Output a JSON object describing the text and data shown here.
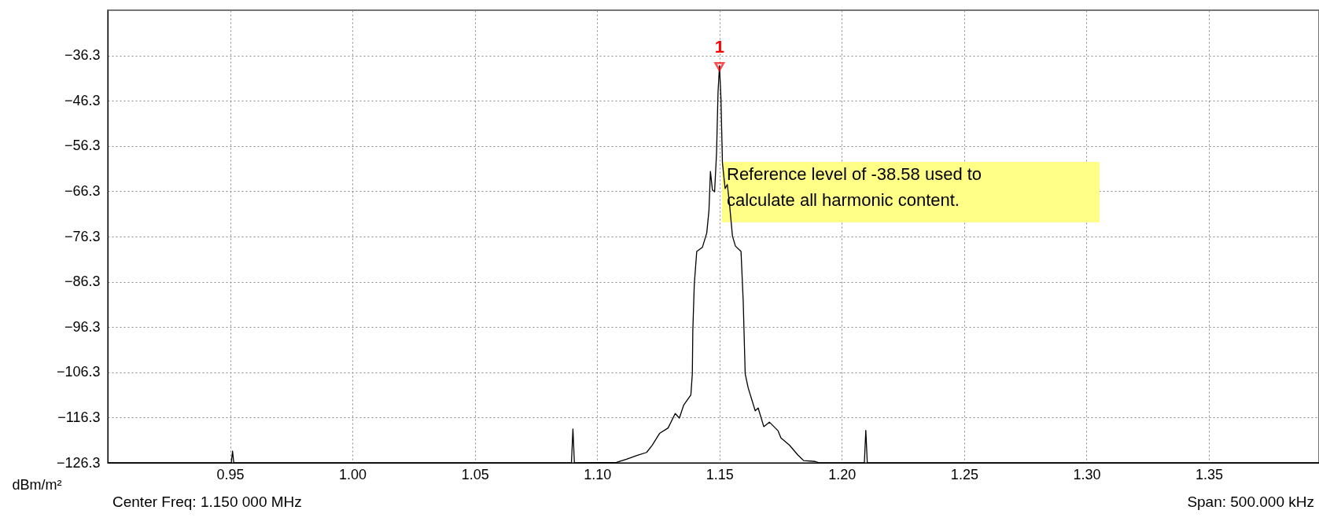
{
  "chart_data": {
    "type": "line",
    "ylabel": "dBm/m²",
    "xlim": [
      0.9,
      1.395
    ],
    "ylim": [
      -126.3,
      -26.3
    ],
    "xticks": [
      0.95,
      {
        "value": 1.0,
        "label": "1.00"
      },
      1.05,
      {
        "value": 1.1,
        "label": "1.10"
      },
      1.15,
      {
        "value": 1.2,
        "label": "1.20"
      },
      1.25,
      {
        "value": 1.3,
        "label": "1.30"
      },
      1.35
    ],
    "yticks": [
      -126.3,
      -116.3,
      -106.3,
      -96.3,
      -86.3,
      -76.3,
      -66.3,
      -56.3,
      -46.3,
      -36.3
    ],
    "grid": true,
    "series": [
      {
        "color": "#000000",
        "x": [
          0.9,
          0.9505,
          0.951,
          0.9515,
          1.0895,
          1.0901,
          1.0907,
          1.1079,
          1.112,
          1.1167,
          1.1202,
          1.1225,
          1.1255,
          1.129,
          1.1319,
          1.1336,
          1.1354,
          1.1383,
          1.1389,
          1.1391,
          1.1397,
          1.1407,
          1.143,
          1.1448,
          1.1457,
          1.1463,
          1.1471,
          1.148,
          1.1488,
          1.1494,
          1.15,
          1.1506,
          1.1512,
          1.1523,
          1.1532,
          1.1541,
          1.1553,
          1.1565,
          1.1588,
          1.1597,
          1.1605,
          1.1617,
          1.1646,
          1.1658,
          1.1681,
          1.1704,
          1.1739,
          1.1751,
          1.1786,
          1.1821,
          1.1844,
          1.1891,
          1.1909,
          1.2092,
          1.2098,
          1.2104,
          1.395
        ],
        "values": [
          -126.3,
          -126.3,
          -123.7,
          -126.3,
          -126.3,
          -118.8,
          -126.3,
          -126.2,
          -125.5,
          -124.6,
          -124.0,
          -122.4,
          -119.8,
          -118.6,
          -115.4,
          -116.4,
          -113.5,
          -111.3,
          -106.6,
          -97.1,
          -86.9,
          -79.6,
          -78.7,
          -75.5,
          -70.5,
          -61.9,
          -66.0,
          -66.4,
          -57.8,
          -44.5,
          -38.58,
          -45.8,
          -60.0,
          -65.7,
          -64.8,
          -69.2,
          -76.2,
          -78.4,
          -79.6,
          -90.7,
          -106.6,
          -109.7,
          -114.8,
          -114.2,
          -118.3,
          -117.3,
          -119.2,
          -120.8,
          -122.4,
          -124.6,
          -125.8,
          -126.0,
          -126.3,
          -126.3,
          -119.1,
          -126.3,
          -126.3
        ]
      }
    ],
    "annotations": [
      {
        "text": "1",
        "x": 1.15,
        "y": -38.58
      },
      "Reference level of -38.58 used to calculate all harmonic content.",
      "Center Freq: 1.150 000 MHz",
      "Span: 500.000 kHz"
    ]
  }
}
